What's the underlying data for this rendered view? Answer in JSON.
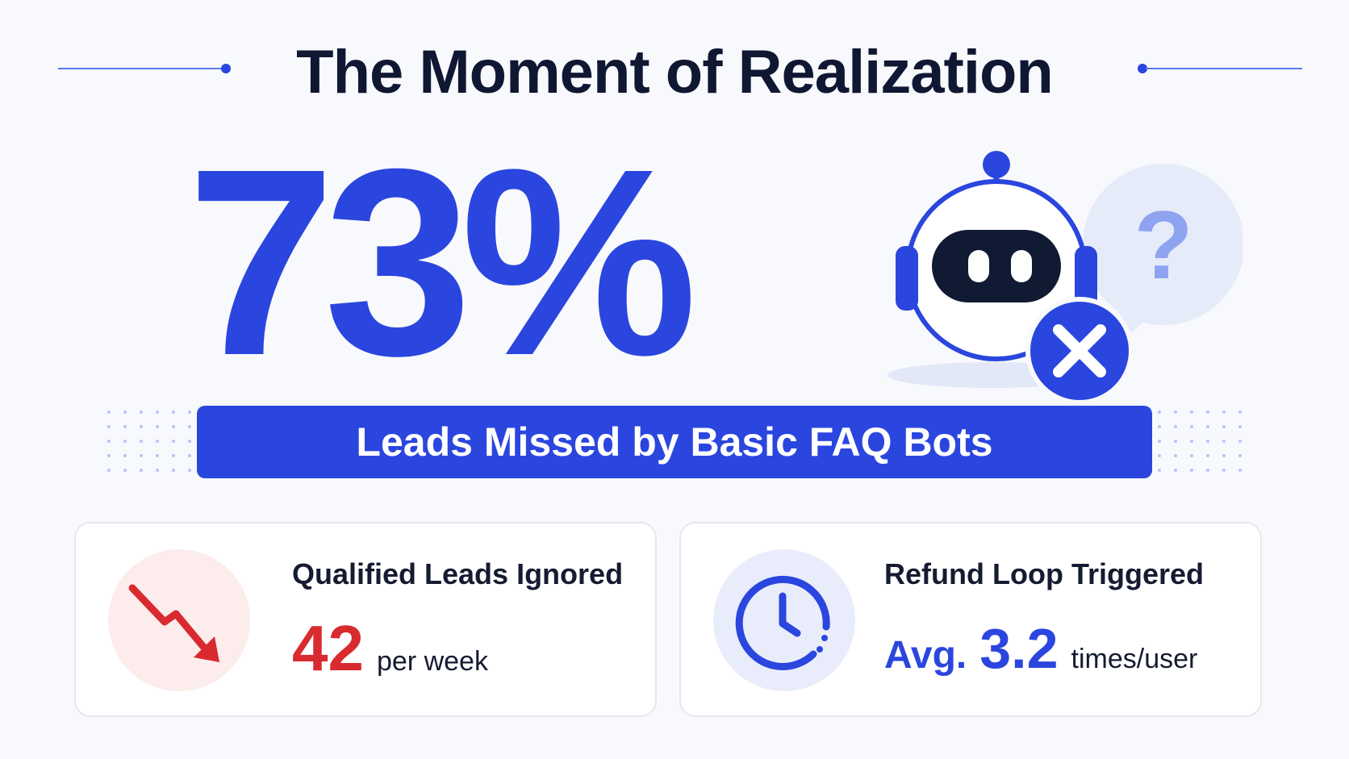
{
  "header": {
    "title": "The Moment of Realization"
  },
  "hero": {
    "stat": "73%",
    "stat_label": "Leads Missed by Basic FAQ Bots",
    "illustration_icon": "robot-icon",
    "badge_icon": "close-icon",
    "bubble_icon": "question-icon"
  },
  "cards": [
    {
      "icon": "trend-down-icon",
      "label": "Qualified Leads Ignored",
      "value": "42",
      "unit": "per week"
    },
    {
      "icon": "clock-icon",
      "label": "Refund Loop Triggered",
      "prefix": "Avg.",
      "value": "3.2",
      "unit": "times/user"
    }
  ],
  "colors": {
    "accent_blue": "#2b46de",
    "title_dark": "#101733",
    "danger_red": "#d92a2f",
    "light_red_bg": "#fdecec",
    "light_blue_bg": "#e9edfb"
  }
}
